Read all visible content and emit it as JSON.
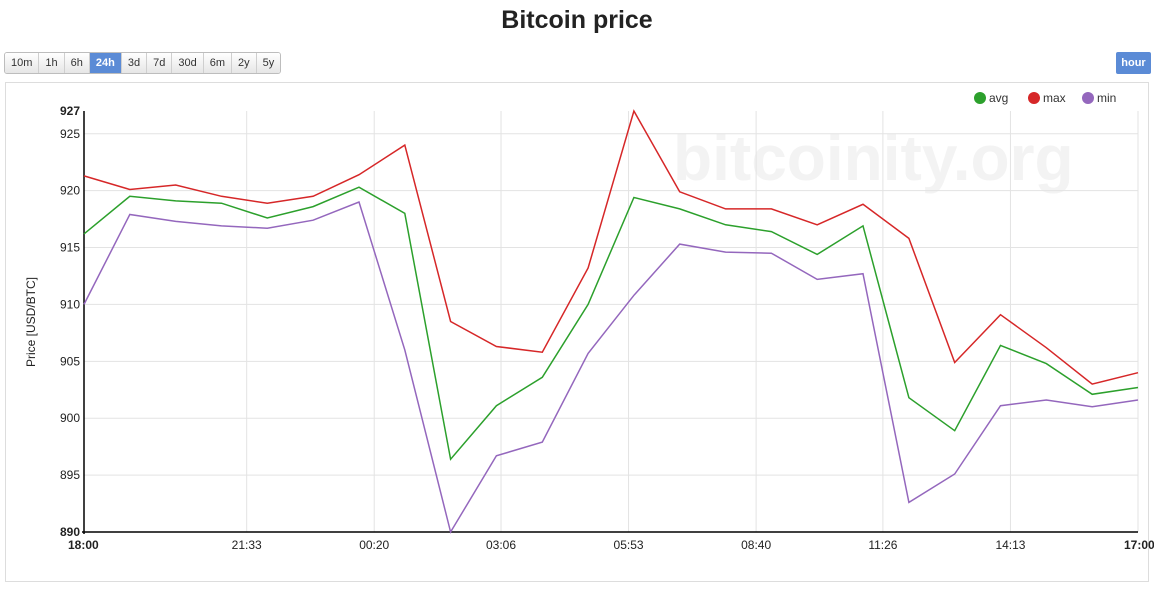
{
  "title": "Bitcoin price",
  "range_buttons": [
    {
      "label": "10m",
      "active": false
    },
    {
      "label": "1h",
      "active": false
    },
    {
      "label": "6h",
      "active": false
    },
    {
      "label": "24h",
      "active": true
    },
    {
      "label": "3d",
      "active": false
    },
    {
      "label": "7d",
      "active": false
    },
    {
      "label": "30d",
      "active": false
    },
    {
      "label": "6m",
      "active": false
    },
    {
      "label": "2y",
      "active": false
    },
    {
      "label": "5y",
      "active": false
    }
  ],
  "unit_button": "hour",
  "watermark": "bitcoinity.org",
  "colors": {
    "avg": "#2ca02c",
    "max": "#d62728",
    "min": "#9467bd",
    "accent": "#5b8bd6"
  },
  "chart_data": {
    "type": "line",
    "ylabel": "Price [USD/BTC]",
    "ylim": [
      890,
      927
    ],
    "yticks": [
      {
        "label": "890",
        "value": 890,
        "bold": true
      },
      {
        "label": "895",
        "value": 895,
        "bold": false
      },
      {
        "label": "900",
        "value": 900,
        "bold": false
      },
      {
        "label": "905",
        "value": 905,
        "bold": false
      },
      {
        "label": "910",
        "value": 910,
        "bold": false
      },
      {
        "label": "915",
        "value": 915,
        "bold": false
      },
      {
        "label": "920",
        "value": 920,
        "bold": false
      },
      {
        "label": "925",
        "value": 925,
        "bold": false
      },
      {
        "label": "927",
        "value": 927,
        "bold": true
      }
    ],
    "x_hours": [
      0,
      1,
      2,
      3,
      4,
      5,
      6,
      7,
      8,
      9,
      10,
      11,
      12,
      13,
      14,
      15,
      16,
      17,
      18,
      19,
      20,
      21,
      22,
      23
    ],
    "x_range": [
      0,
      23
    ],
    "xticks": [
      {
        "label": "18:00",
        "value": 0,
        "bold": true
      },
      {
        "label": "21:33",
        "value": 3.55,
        "bold": false
      },
      {
        "label": "00:20",
        "value": 6.333,
        "bold": false
      },
      {
        "label": "03:06",
        "value": 9.1,
        "bold": false
      },
      {
        "label": "05:53",
        "value": 11.883,
        "bold": false
      },
      {
        "label": "08:40",
        "value": 14.667,
        "bold": false
      },
      {
        "label": "11:26",
        "value": 17.433,
        "bold": false
      },
      {
        "label": "14:13",
        "value": 20.217,
        "bold": false
      },
      {
        "label": "17:00",
        "value": 23,
        "bold": true
      }
    ],
    "legend": "top-right",
    "grid": true,
    "series": [
      {
        "name": "avg",
        "values": [
          916.2,
          919.5,
          919.1,
          918.9,
          917.6,
          918.6,
          920.3,
          918.0,
          896.4,
          901.1,
          903.6,
          910.0,
          919.4,
          918.4,
          917.0,
          916.4,
          914.4,
          916.9,
          901.8,
          898.9,
          906.4,
          904.8,
          902.1,
          902.7
        ]
      },
      {
        "name": "max",
        "values": [
          921.3,
          920.1,
          920.5,
          919.5,
          918.9,
          919.5,
          921.4,
          924.0,
          908.5,
          906.3,
          905.8,
          913.2,
          927.0,
          919.9,
          918.4,
          918.4,
          917.0,
          918.8,
          915.8,
          904.9,
          909.1,
          906.2,
          903.0,
          904.0
        ]
      },
      {
        "name": "min",
        "values": [
          910.0,
          917.9,
          917.3,
          916.9,
          916.7,
          917.4,
          919.0,
          906.0,
          890.0,
          896.7,
          897.9,
          905.7,
          910.8,
          915.3,
          914.6,
          914.5,
          912.2,
          912.7,
          892.6,
          895.1,
          901.1,
          901.6,
          901.0,
          901.6
        ]
      }
    ]
  }
}
